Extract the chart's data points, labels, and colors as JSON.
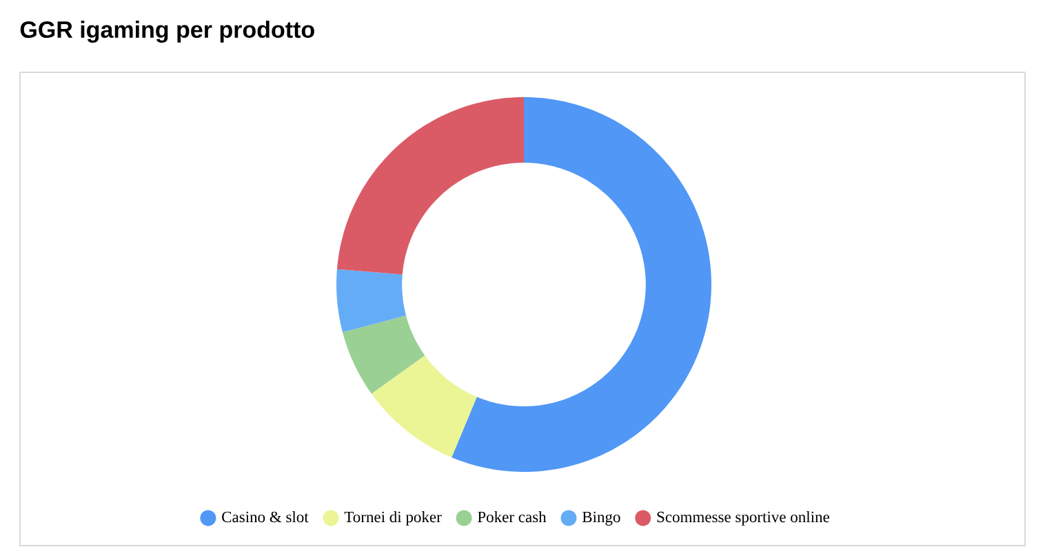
{
  "chart_data": {
    "type": "donut",
    "title": "GGR igaming per prodotto",
    "categories": [
      "Casino & slot",
      "Tornei di poker",
      "Poker cash",
      "Bingo",
      "Scommesse sportive online"
    ],
    "values": [
      56.3,
      8.8,
      5.8,
      5.4,
      23.7
    ],
    "colors": [
      "#5197f5",
      "#ebf595",
      "#9ad094",
      "#65acf7",
      "#da5b66"
    ],
    "legend": "bottom"
  }
}
